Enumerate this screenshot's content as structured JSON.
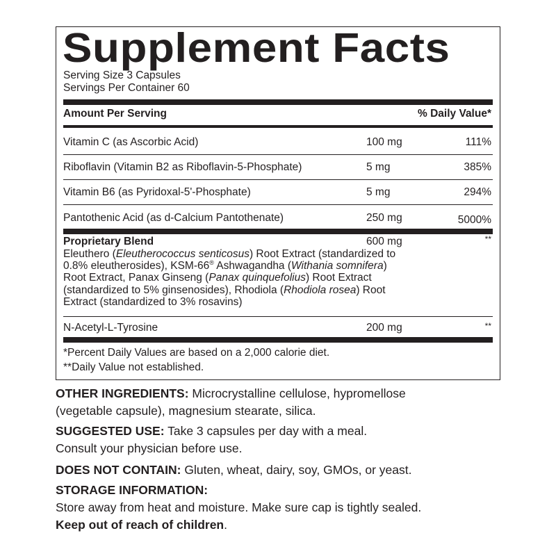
{
  "title": "Supplement Facts",
  "serving_size": "Serving Size 3 Capsules",
  "servings_per_container": "Servings Per Container 60",
  "header": {
    "amount": "Amount Per Serving",
    "dv": "% Daily Value*"
  },
  "nutrients": [
    {
      "name": "Vitamin C (as Ascorbic Acid)",
      "amount": "100 mg",
      "dv": "111%"
    },
    {
      "name": "Riboflavin (Vitamin B2 as Riboflavin-5-Phosphate)",
      "amount": "5 mg",
      "dv": "385%"
    },
    {
      "name": "Vitamin B6 (as Pyridoxal-5'-Phosphate)",
      "amount": "5 mg",
      "dv": "294%"
    },
    {
      "name": "Pantothenic Acid (as d-Calcium Pantothenate)",
      "amount": "250 mg",
      "dv": "5000%"
    }
  ],
  "blend": {
    "name": "Proprietary Blend",
    "amount": "600 mg",
    "dv": "**",
    "lines": [
      [
        [
          "Eleuthero (",
          "n"
        ],
        [
          "Eleutherococcus senticosus",
          "i"
        ],
        [
          ") Root Extract (standardized to",
          "n"
        ]
      ],
      [
        [
          "0.8% eleutherosides), KSM-66",
          "n"
        ],
        [
          "®",
          "s"
        ],
        [
          " Ashwagandha (",
          "n"
        ],
        [
          "Withania somnifera",
          "i"
        ],
        [
          ")",
          "n"
        ]
      ],
      [
        [
          "Root Extract, Panax Ginseng (",
          "n"
        ],
        [
          "Panax quinquefolius",
          "i"
        ],
        [
          ") Root Extract",
          "n"
        ]
      ],
      [
        [
          "(standardized to 5% ginsenosides), Rhodiola (",
          "n"
        ],
        [
          "Rhodiola rosea",
          "i"
        ],
        [
          ") Root",
          "n"
        ]
      ],
      [
        [
          "Extract (standardized to 3% rosavins)",
          "n"
        ]
      ]
    ]
  },
  "tyrosine": {
    "name": "N-Acetyl-L-Tyrosine",
    "amount": "200 mg",
    "dv": "**"
  },
  "footnotes": [
    "*Percent Daily Values are based on a 2,000 calorie diet.",
    "**Daily Value not established."
  ],
  "other_ingredients": {
    "label": "OTHER INGREDIENTS:",
    "text": " Microcrystalline cellulose, hypromellose",
    "text2": "(vegetable capsule), magnesium stearate, silica."
  },
  "suggested_use": {
    "label": "SUGGESTED USE:",
    "text": " Take 3 capsules per day with a meal.",
    "text2": "Consult your physician before use."
  },
  "does_not_contain": {
    "label": "DOES NOT CONTAIN:",
    "text": " Gluten, wheat, dairy, soy, GMOs, or yeast."
  },
  "storage": {
    "label": "STORAGE INFORMATION:",
    "text": "Store away from heat and moisture. Make sure cap is tightly sealed.",
    "warning": "Keep out of reach of children",
    "warning_end": "."
  }
}
